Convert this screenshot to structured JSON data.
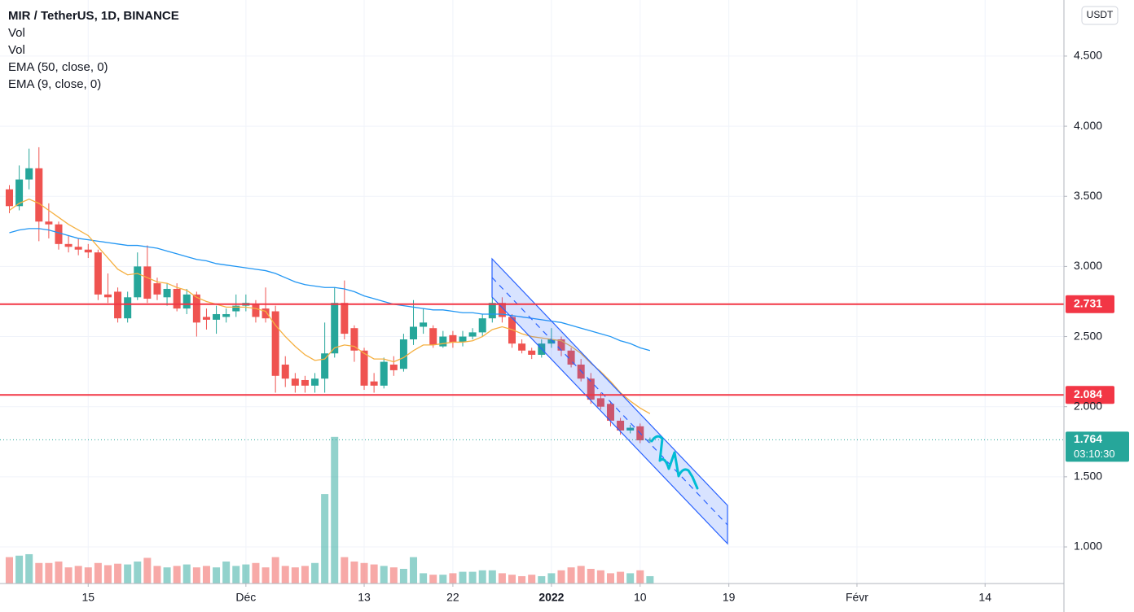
{
  "chart_data": {
    "type": "candlestick",
    "title": "MIR / TetherUS, 1D, BINANCE",
    "indicators": [
      "Vol",
      "Vol",
      "EMA (50, close, 0)",
      "EMA (9, close, 0)"
    ],
    "currency": "USDT",
    "x": [
      0,
      1,
      2,
      3,
      4,
      5,
      6,
      7,
      8,
      9,
      10,
      11,
      12,
      13,
      14,
      15,
      16,
      17,
      18,
      19,
      20,
      21,
      22,
      23,
      24,
      25,
      26,
      27,
      28,
      29,
      30,
      31,
      32,
      33,
      34,
      35,
      36,
      37,
      38,
      39,
      40,
      41,
      42,
      43,
      44,
      45,
      46,
      47,
      48,
      49,
      50,
      51,
      52,
      53,
      54,
      55,
      56,
      57,
      58,
      59,
      60,
      61,
      62,
      63,
      64,
      65
    ],
    "open": [
      3.55,
      3.43,
      3.62,
      3.7,
      3.32,
      3.3,
      3.16,
      3.14,
      3.12,
      3.1,
      2.8,
      2.82,
      2.63,
      2.78,
      3.0,
      2.88,
      2.78,
      2.84,
      2.7,
      2.8,
      2.64,
      2.62,
      2.64,
      2.68,
      2.72,
      2.73,
      2.7,
      2.68,
      2.3,
      2.2,
      2.19,
      2.15,
      2.2,
      2.38,
      2.74,
      2.56,
      2.4,
      2.18,
      2.15,
      2.3,
      2.27,
      2.48,
      2.57,
      2.56,
      2.43,
      2.51,
      2.46,
      2.5,
      2.53,
      2.63,
      2.74,
      2.64,
      2.45,
      2.4,
      2.37,
      2.45,
      2.48,
      2.4,
      2.3,
      2.2,
      2.06,
      2.02,
      1.9,
      1.83,
      1.86,
      1.76
    ],
    "high": [
      3.58,
      3.72,
      3.84,
      3.85,
      3.45,
      3.32,
      3.22,
      3.2,
      3.16,
      3.12,
      2.95,
      2.85,
      2.82,
      3.1,
      3.15,
      2.92,
      2.88,
      2.88,
      2.84,
      2.82,
      2.7,
      2.72,
      2.7,
      2.8,
      2.8,
      2.76,
      2.85,
      2.72,
      2.36,
      2.24,
      2.22,
      2.24,
      2.6,
      2.85,
      2.9,
      2.58,
      2.42,
      2.24,
      2.35,
      2.36,
      2.52,
      2.76,
      2.7,
      2.58,
      2.54,
      2.54,
      2.54,
      2.56,
      2.66,
      2.78,
      2.78,
      2.66,
      2.48,
      2.42,
      2.48,
      2.56,
      2.5,
      2.42,
      2.34,
      2.24,
      2.1,
      2.04,
      1.92,
      1.87,
      1.88,
      1.78
    ],
    "low": [
      3.38,
      3.4,
      3.55,
      3.18,
      3.2,
      3.12,
      3.1,
      3.08,
      3.06,
      2.76,
      2.74,
      2.6,
      2.6,
      2.76,
      2.74,
      2.76,
      2.72,
      2.68,
      2.66,
      2.5,
      2.55,
      2.52,
      2.6,
      2.64,
      2.68,
      2.6,
      2.6,
      2.1,
      2.14,
      2.1,
      2.1,
      2.1,
      2.1,
      2.35,
      2.48,
      2.32,
      2.12,
      2.1,
      2.13,
      2.22,
      2.25,
      2.44,
      2.52,
      2.42,
      2.42,
      2.42,
      2.43,
      2.48,
      2.5,
      2.6,
      2.6,
      2.42,
      2.38,
      2.34,
      2.35,
      2.42,
      2.36,
      2.28,
      2.18,
      2.02,
      1.98,
      1.86,
      1.8,
      1.81,
      1.74,
      1.74
    ],
    "close": [
      3.43,
      3.62,
      3.7,
      3.32,
      3.3,
      3.16,
      3.14,
      3.12,
      3.1,
      2.8,
      2.78,
      2.63,
      2.78,
      3.0,
      2.77,
      2.8,
      2.84,
      2.7,
      2.8,
      2.6,
      2.62,
      2.66,
      2.66,
      2.72,
      2.74,
      2.64,
      2.63,
      2.22,
      2.2,
      2.15,
      2.15,
      2.2,
      2.38,
      2.74,
      2.52,
      2.4,
      2.15,
      2.15,
      2.32,
      2.26,
      2.48,
      2.57,
      2.6,
      2.44,
      2.5,
      2.46,
      2.5,
      2.53,
      2.63,
      2.74,
      2.64,
      2.45,
      2.4,
      2.37,
      2.45,
      2.48,
      2.4,
      2.3,
      2.2,
      2.05,
      2.0,
      1.9,
      1.83,
      1.85,
      1.76,
      1.764
    ],
    "volume": [
      36,
      38,
      40,
      28,
      28,
      30,
      22,
      24,
      22,
      28,
      25,
      27,
      26,
      30,
      35,
      24,
      22,
      24,
      26,
      22,
      24,
      22,
      30,
      24,
      26,
      28,
      22,
      36,
      24,
      22,
      24,
      28,
      122,
      200,
      36,
      30,
      28,
      26,
      24,
      22,
      20,
      36,
      14,
      12,
      12,
      14,
      16,
      16,
      18,
      18,
      14,
      12,
      10,
      12,
      10,
      14,
      18,
      22,
      24,
      20,
      18,
      14,
      16,
      14,
      18,
      10
    ],
    "ema50": [
      3.24,
      3.26,
      3.27,
      3.27,
      3.26,
      3.24,
      3.22,
      3.2,
      3.19,
      3.18,
      3.17,
      3.16,
      3.15,
      3.15,
      3.14,
      3.13,
      3.11,
      3.09,
      3.07,
      3.05,
      3.04,
      3.02,
      3.01,
      3.0,
      2.99,
      2.98,
      2.97,
      2.95,
      2.92,
      2.89,
      2.87,
      2.86,
      2.85,
      2.85,
      2.84,
      2.82,
      2.79,
      2.77,
      2.75,
      2.73,
      2.72,
      2.71,
      2.7,
      2.69,
      2.69,
      2.68,
      2.67,
      2.67,
      2.66,
      2.66,
      2.66,
      2.65,
      2.64,
      2.63,
      2.62,
      2.61,
      2.6,
      2.58,
      2.56,
      2.54,
      2.52,
      2.5,
      2.47,
      2.45,
      2.42,
      2.4
    ],
    "ema9": [
      3.4,
      3.45,
      3.48,
      3.45,
      3.4,
      3.35,
      3.3,
      3.26,
      3.22,
      3.14,
      3.06,
      2.98,
      2.94,
      2.95,
      2.92,
      2.89,
      2.88,
      2.85,
      2.83,
      2.78,
      2.75,
      2.73,
      2.71,
      2.71,
      2.71,
      2.7,
      2.68,
      2.58,
      2.5,
      2.43,
      2.37,
      2.33,
      2.34,
      2.42,
      2.44,
      2.43,
      2.38,
      2.34,
      2.34,
      2.32,
      2.35,
      2.4,
      2.44,
      2.44,
      2.45,
      2.46,
      2.46,
      2.47,
      2.5,
      2.55,
      2.57,
      2.55,
      2.52,
      2.5,
      2.49,
      2.48,
      2.47,
      2.43,
      2.38,
      2.31,
      2.25,
      2.18,
      2.1,
      2.04,
      1.99,
      1.95
    ],
    "up_color": "#26a69a",
    "down_color": "#ef5350",
    "ema50_color": "#2196f3",
    "ema9_color": "#f5b041",
    "xlim": [
      -0.95,
      107
    ],
    "ylim": [
      0.739,
      4.9
    ],
    "volume_lim": [
      0,
      222
    ],
    "grid": true,
    "xticks": [
      {
        "value": 8,
        "label": "15"
      },
      {
        "value": 24,
        "label": "Déc"
      },
      {
        "value": 36,
        "label": "13"
      },
      {
        "value": 45,
        "label": "22"
      },
      {
        "value": 55,
        "label": "2022"
      },
      {
        "value": 64,
        "label": "10"
      },
      {
        "value": 73,
        "label": "19"
      },
      {
        "value": 86,
        "label": "Févr"
      },
      {
        "value": 99,
        "label": "14"
      }
    ],
    "yticks": [
      {
        "value": 1,
        "label": "1.000"
      },
      {
        "value": 1.5,
        "label": "1.500"
      },
      {
        "value": 2,
        "label": "2.000"
      },
      {
        "value": 2.5,
        "label": "2.500"
      },
      {
        "value": 3,
        "label": "3.000"
      },
      {
        "value": 3.5,
        "label": "3.500"
      },
      {
        "value": 4,
        "label": "4.000"
      },
      {
        "value": 4.5,
        "label": "4.500"
      }
    ],
    "horizontal_lines": [
      {
        "value": 2.731,
        "label": "2.731"
      },
      {
        "value": 2.084,
        "label": "2.084"
      }
    ],
    "line_color": "#f23645",
    "last_price": {
      "value": 1.764,
      "label": "1.764",
      "countdown": "03:10:30"
    }
  }
}
